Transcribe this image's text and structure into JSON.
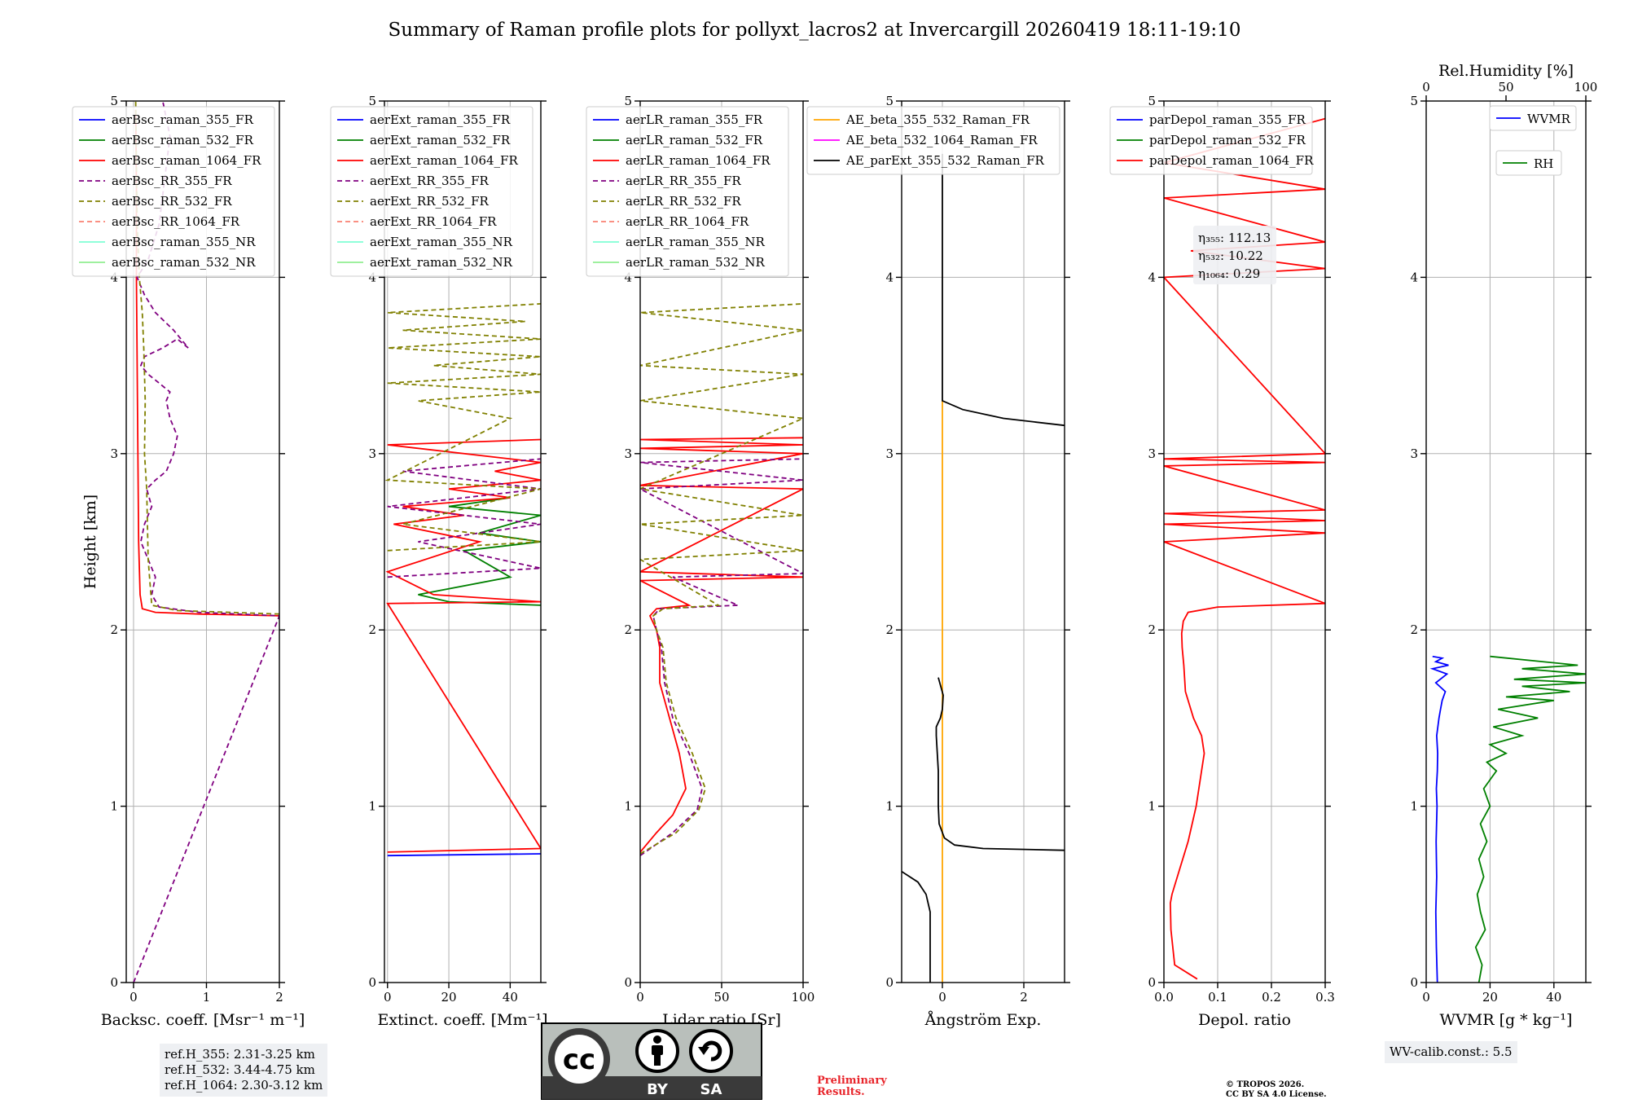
{
  "title": "Summary of Raman profile plots for pollyxt_lacros2 at Invercargill 20260419 18:11-19:10",
  "chart_data": [
    {
      "type": "line",
      "panel": "backscatter",
      "xlabel": "Backsc. coeff. [Msr⁻¹ m⁻¹]",
      "ylabel": "Height [km]",
      "xlim": [
        -0.1,
        2.0
      ],
      "ylim": [
        0,
        5
      ],
      "xticks": [
        0,
        1,
        2
      ],
      "yticks": [
        0,
        1,
        2,
        3,
        4,
        5
      ],
      "legend_position": "top-left",
      "series": [
        {
          "name": "aerBsc_raman_355_FR",
          "color": "#0000ff",
          "dash": "",
          "x": [],
          "y": []
        },
        {
          "name": "aerBsc_raman_532_FR",
          "color": "#008000",
          "dash": "",
          "x": [],
          "y": []
        },
        {
          "name": "aerBsc_raman_1064_FR",
          "color": "#ff0000",
          "dash": "",
          "x": [
            2.0,
            0.9,
            0.3,
            0.12,
            0.09,
            0.07,
            0.06,
            0.05,
            0.04,
            0.04,
            0.03
          ],
          "y": [
            2.08,
            2.09,
            2.1,
            2.12,
            2.2,
            2.5,
            3.0,
            3.5,
            4.0,
            4.5,
            4.95
          ]
        },
        {
          "name": "aerBsc_RR_355_FR",
          "color": "#800080",
          "dash": "6,4",
          "x": [
            0.0,
            2.0,
            0.9,
            0.35,
            0.25,
            0.3,
            0.2,
            0.1,
            0.15,
            0.25,
            0.18,
            0.3,
            0.45,
            0.55,
            0.6,
            0.5,
            0.45,
            0.5,
            0.35,
            0.2,
            0.1,
            0.15,
            0.4,
            0.6,
            0.75,
            0.55,
            0.3,
            0.15,
            0.05,
            0.2,
            0.35,
            0.5,
            0.4
          ],
          "y": [
            0.0,
            2.08,
            2.1,
            2.13,
            2.2,
            2.3,
            2.4,
            2.5,
            2.6,
            2.7,
            2.8,
            2.85,
            2.9,
            3.0,
            3.1,
            3.2,
            3.3,
            3.35,
            3.4,
            3.45,
            3.5,
            3.55,
            3.6,
            3.65,
            3.6,
            3.7,
            3.8,
            3.9,
            4.0,
            4.1,
            4.3,
            4.8,
            5.0
          ]
        },
        {
          "name": "aerBsc_RR_532_FR",
          "color": "#808000",
          "dash": "6,4",
          "x": [
            2.0,
            0.6,
            0.25,
            0.2,
            0.18,
            0.15,
            0.16,
            0.14,
            0.13,
            0.12,
            0.1,
            0.08,
            0.05,
            0.03
          ],
          "y": [
            2.09,
            2.11,
            2.14,
            2.4,
            2.8,
            3.0,
            3.3,
            3.6,
            3.7,
            3.8,
            3.9,
            4.0,
            4.3,
            5.0
          ]
        },
        {
          "name": "aerBsc_RR_1064_FR",
          "color": "#fa8072",
          "dash": "6,4",
          "x": [],
          "y": []
        },
        {
          "name": "aerBsc_raman_355_NR",
          "color": "#7fffd4",
          "dash": "",
          "x": [],
          "y": []
        },
        {
          "name": "aerBsc_raman_532_NR",
          "color": "#90ee90",
          "dash": "",
          "x": [],
          "y": []
        }
      ]
    },
    {
      "type": "line",
      "panel": "extinction",
      "xlabel": "Extinct. coeff. [Mm⁻¹]",
      "xlim": [
        -1,
        50
      ],
      "ylim": [
        0,
        5
      ],
      "xticks": [
        0,
        20,
        40
      ],
      "yticks": [
        0,
        1,
        2,
        3,
        4,
        5
      ],
      "legend_position": "top-left",
      "series": [
        {
          "name": "aerExt_raman_355_FR",
          "color": "#0000ff",
          "dash": "",
          "x": [
            0,
            50
          ],
          "y": [
            0.72,
            0.73
          ]
        },
        {
          "name": "aerExt_raman_532_FR",
          "color": "#008000",
          "dash": "",
          "x": [
            50,
            20,
            10,
            40,
            25,
            50,
            30,
            50,
            20,
            40
          ],
          "y": [
            2.14,
            2.16,
            2.2,
            2.3,
            2.45,
            2.5,
            2.55,
            2.65,
            2.7,
            2.75
          ]
        },
        {
          "name": "aerExt_raman_1064_FR",
          "color": "#ff0000",
          "dash": "",
          "x": [
            0,
            50,
            0,
            50,
            15,
            0,
            30,
            2,
            25,
            5,
            40,
            20,
            50,
            35,
            50,
            0,
            50
          ],
          "y": [
            0.74,
            0.76,
            2.15,
            2.16,
            2.2,
            2.33,
            2.5,
            2.6,
            2.65,
            2.7,
            2.75,
            2.8,
            2.85,
            2.9,
            2.95,
            3.05,
            3.08
          ]
        },
        {
          "name": "aerExt_RR_355_FR",
          "color": "#800080",
          "dash": "6,4",
          "x": [
            0,
            50,
            10,
            50,
            0,
            50,
            5,
            50
          ],
          "y": [
            2.3,
            2.35,
            2.5,
            2.6,
            2.7,
            2.8,
            2.9,
            2.97
          ]
        },
        {
          "name": "aerExt_RR_532_FR",
          "color": "#808000",
          "dash": "6,4",
          "x": [
            0,
            50,
            5,
            50,
            0,
            40,
            10,
            50,
            0,
            50,
            15,
            50,
            0,
            50,
            5,
            45,
            0,
            50
          ],
          "y": [
            2.45,
            2.5,
            2.6,
            2.8,
            2.85,
            3.2,
            3.3,
            3.35,
            3.4,
            3.45,
            3.5,
            3.55,
            3.6,
            3.65,
            3.7,
            3.75,
            3.8,
            3.85
          ]
        },
        {
          "name": "aerExt_RR_1064_FR",
          "color": "#fa8072",
          "dash": "6,4",
          "x": [],
          "y": []
        },
        {
          "name": "aerExt_raman_355_NR",
          "color": "#7fffd4",
          "dash": "",
          "x": [],
          "y": []
        },
        {
          "name": "aerExt_raman_532_NR",
          "color": "#90ee90",
          "dash": "",
          "x": [],
          "y": []
        }
      ]
    },
    {
      "type": "line",
      "panel": "lidar_ratio",
      "xlabel": "Lidar ratio [Sr]",
      "xlim": [
        0,
        100
      ],
      "ylim": [
        0,
        5
      ],
      "xticks": [
        0,
        50,
        100
      ],
      "yticks": [
        0,
        1,
        2,
        3,
        4,
        5
      ],
      "legend_position": "top-left",
      "series": [
        {
          "name": "aerLR_raman_355_FR",
          "color": "#0000ff",
          "dash": "",
          "x": [],
          "y": []
        },
        {
          "name": "aerLR_raman_532_FR",
          "color": "#008000",
          "dash": "",
          "x": [],
          "y": []
        },
        {
          "name": "aerLR_raman_1064_FR",
          "color": "#ff0000",
          "dash": "",
          "x": [
            0,
            10,
            20,
            28,
            24,
            18,
            12,
            12,
            10,
            6,
            10,
            30,
            0,
            100,
            0,
            100,
            0,
            100,
            0,
            100,
            0,
            100
          ],
          "y": [
            0.74,
            0.85,
            0.95,
            1.1,
            1.3,
            1.5,
            1.7,
            1.9,
            2.0,
            2.08,
            2.12,
            2.14,
            2.28,
            2.3,
            2.33,
            2.8,
            2.82,
            3.0,
            3.03,
            3.05,
            3.08,
            3.09
          ]
        },
        {
          "name": "aerLR_RR_355_FR",
          "color": "#800080",
          "dash": "6,4",
          "x": [
            0,
            20,
            35,
            38,
            30,
            20,
            15,
            13,
            10,
            8,
            12,
            60,
            20,
            100,
            0,
            100,
            0,
            100
          ],
          "y": [
            0.72,
            0.85,
            0.98,
            1.1,
            1.3,
            1.5,
            1.7,
            1.9,
            2.0,
            2.08,
            2.12,
            2.14,
            2.3,
            2.32,
            2.8,
            2.85,
            2.95,
            2.97
          ]
        },
        {
          "name": "aerLR_RR_532_FR",
          "color": "#808000",
          "dash": "6,4",
          "x": [
            0,
            22,
            36,
            40,
            32,
            22,
            16,
            14,
            10,
            8,
            14,
            48,
            0,
            100,
            0,
            100,
            0,
            100,
            0,
            100,
            0,
            100,
            0,
            100
          ],
          "y": [
            0.73,
            0.85,
            0.98,
            1.1,
            1.3,
            1.5,
            1.7,
            1.9,
            2.0,
            2.08,
            2.12,
            2.14,
            2.4,
            2.45,
            2.6,
            2.65,
            2.8,
            3.2,
            3.3,
            3.45,
            3.5,
            3.7,
            3.8,
            3.85
          ]
        },
        {
          "name": "aerLR_RR_1064_FR",
          "color": "#fa8072",
          "dash": "6,4",
          "x": [],
          "y": []
        },
        {
          "name": "aerLR_raman_355_NR",
          "color": "#7fffd4",
          "dash": "",
          "x": [],
          "y": []
        },
        {
          "name": "aerLR_raman_532_NR",
          "color": "#90ee90",
          "dash": "",
          "x": [],
          "y": []
        }
      ]
    },
    {
      "type": "line",
      "panel": "angstrom",
      "xlabel": "Ångström Exp.",
      "xlim": [
        -1,
        3
      ],
      "ylim": [
        0,
        5
      ],
      "xticks": [
        0,
        2
      ],
      "yticks": [
        0,
        1,
        2,
        3,
        4,
        5
      ],
      "legend_position": "top-left",
      "series": [
        {
          "name": "AE_beta_355_532_Raman_FR",
          "color": "#ffa500",
          "dash": "",
          "x": [
            0,
            0
          ],
          "y": [
            0,
            3.3
          ]
        },
        {
          "name": "AE_beta_532_1064_Raman_FR",
          "color": "#ff00ff",
          "dash": "",
          "x": [],
          "y": []
        },
        {
          "name": "AE_parExt_355_532_Raman_FR",
          "color": "#000000",
          "dash": "",
          "x": [
            -0.3,
            -0.3,
            -0.4,
            -0.6,
            -1.0,
            "",
            3.0,
            1.0,
            0.3,
            0.05,
            -0.08,
            -0.1,
            -0.1,
            -0.15,
            -0.15,
            -0.05,
            0.0,
            0.02,
            -0.1,
            "",
            3.0,
            1.5,
            0.5,
            0.0,
            0.0
          ],
          "y": [
            0,
            0.4,
            0.5,
            0.57,
            0.63,
            "",
            0.75,
            0.76,
            0.78,
            0.82,
            0.9,
            1.0,
            1.2,
            1.4,
            1.45,
            1.5,
            1.55,
            1.63,
            1.73,
            "",
            3.16,
            3.2,
            3.25,
            3.3,
            4.7
          ]
        }
      ]
    },
    {
      "type": "line",
      "panel": "depolarization",
      "xlabel": "Depol. ratio",
      "xlim": [
        0,
        0.3
      ],
      "ylim": [
        0,
        5
      ],
      "xticks": [
        0.0,
        0.1,
        0.2,
        0.3
      ],
      "xtick_labels": [
        "0.0",
        "0.1",
        "0.2",
        "0.3"
      ],
      "yticks": [
        0,
        1,
        2,
        3,
        4,
        5
      ],
      "legend_position": "top-left",
      "annotation": [
        "η₃₅₅: 112.13",
        "η₅₃₂: 10.22",
        "η₁₀₆₄: 0.29"
      ],
      "series": [
        {
          "name": "parDepol_raman_355_FR",
          "color": "#0000ff",
          "dash": "",
          "x": [],
          "y": []
        },
        {
          "name": "parDepol_raman_532_FR",
          "color": "#008000",
          "dash": "",
          "x": [],
          "y": []
        },
        {
          "name": "parDepol_raman_1064_FR",
          "color": "#ff0000",
          "dash": "",
          "x": [
            0.062,
            0.02,
            0.013,
            0.012,
            0.015,
            0.03,
            0.045,
            0.06,
            0.07,
            0.075,
            0.07,
            0.055,
            0.04,
            0.037,
            0.034,
            0.033,
            0.036,
            0.045,
            0.1,
            0.3,
            0.0,
            0.3,
            0.0,
            0.3,
            0.0,
            0.3,
            0.0,
            0.3,
            0.0,
            0.3,
            0.0,
            0.3,
            0.05,
            0.3,
            0.0,
            0.3,
            0.0,
            0.3
          ],
          "y": [
            0.02,
            0.1,
            0.3,
            0.45,
            0.5,
            0.65,
            0.8,
            1.0,
            1.2,
            1.3,
            1.4,
            1.5,
            1.65,
            1.8,
            1.9,
            1.98,
            2.05,
            2.1,
            2.13,
            2.15,
            2.5,
            2.55,
            2.6,
            2.62,
            2.66,
            2.68,
            2.93,
            2.95,
            2.97,
            3.0,
            4.0,
            4.05,
            4.15,
            4.2,
            4.45,
            4.5,
            4.65,
            4.9
          ]
        }
      ]
    },
    {
      "type": "line",
      "panel": "water_vapor",
      "xlabel": "WVMR [g * kg⁻¹]",
      "x2label": "Rel.Humidity [%]",
      "xlim": [
        0,
        50
      ],
      "x2lim": [
        0,
        100
      ],
      "ylim": [
        0,
        5
      ],
      "xticks": [
        0,
        20,
        40
      ],
      "x2ticks": [
        0,
        50,
        100
      ],
      "yticks": [
        0,
        1,
        2,
        3,
        4,
        5
      ],
      "legend_position": "top-right",
      "series": [
        {
          "name": "WVMR",
          "color": "#0000ff",
          "dash": "",
          "axis": "bottom",
          "x": [
            3.5,
            3.2,
            3.0,
            3.3,
            3.1,
            3.4,
            3.2,
            3.5,
            3.6,
            3.3,
            4.0,
            4.5,
            5.0,
            6.0,
            3.0,
            6.5,
            2.0,
            7.0,
            3.0,
            5.0,
            2.0
          ],
          "y": [
            0.0,
            0.2,
            0.4,
            0.6,
            0.8,
            1.0,
            1.1,
            1.2,
            1.3,
            1.4,
            1.5,
            1.55,
            1.6,
            1.65,
            1.7,
            1.75,
            1.78,
            1.8,
            1.82,
            1.84,
            1.85
          ]
        },
        {
          "name": "RH",
          "color": "#008000",
          "dash": "",
          "axis": "top",
          "x": [
            33,
            35,
            31,
            37,
            34,
            32,
            36,
            33,
            38,
            34,
            40,
            36,
            44,
            38,
            50,
            40,
            60,
            42,
            70,
            45,
            80,
            50,
            90,
            60,
            100,
            55,
            100,
            60,
            95,
            40
          ],
          "y": [
            0.0,
            0.1,
            0.2,
            0.3,
            0.4,
            0.5,
            0.6,
            0.7,
            0.8,
            0.9,
            1.0,
            1.1,
            1.2,
            1.25,
            1.3,
            1.35,
            1.4,
            1.45,
            1.5,
            1.55,
            1.6,
            1.62,
            1.65,
            1.68,
            1.7,
            1.72,
            1.75,
            1.78,
            1.8,
            1.85
          ]
        }
      ]
    }
  ],
  "info": {
    "ref_h_355": "ref.H_355: 2.31-3.25 km",
    "ref_h_532": "ref.H_532: 3.44-4.75 km",
    "ref_h_1064": "ref.H_1064: 2.30-3.12 km",
    "wv_calib": "WV-calib.const.: 5.5",
    "prelim_line1": "Preliminary",
    "prelim_line2": "Results.",
    "copyright_line1": "© TROPOS 2026.",
    "copyright_line2": "CC BY SA 4.0 License."
  },
  "license_badge": {
    "cc": "cc",
    "by": "BY",
    "sa": "SA"
  },
  "colors": {
    "grid": "#b0b0b0",
    "legend_border": "#cccccc",
    "info_bg": "#eef0f3",
    "preliminary": "#e8252b",
    "badge_gray": "#b9bfbb",
    "badge_dark": "#3a3a3a"
  }
}
